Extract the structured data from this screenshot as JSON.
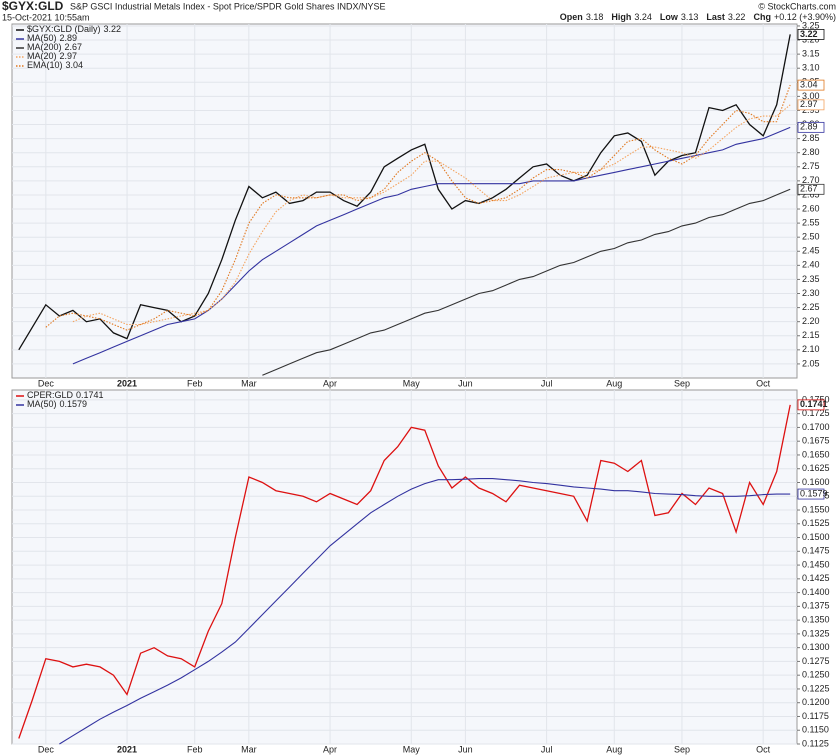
{
  "header": {
    "symbol": "$GYX:GLD",
    "description": "S&P GSCI Industrial Metals Index - Spot Price/SPDR Gold Shares INDX/NYSE",
    "date": "15-Oct-2021 10:55am",
    "credit": "© StockCharts.com",
    "quote": [
      {
        "label": "Open",
        "value": 3.18
      },
      {
        "label": "High",
        "value": 3.24
      },
      {
        "label": "Low",
        "value": 3.13
      },
      {
        "label": "Last",
        "value": 3.22
      },
      {
        "label": "Chg",
        "value": "+0.12 (+3.90%)"
      }
    ]
  },
  "chart_data": [
    {
      "type": "line",
      "grid": true,
      "legend": "top-left",
      "categories": [
        null,
        null,
        "Dec",
        null,
        null,
        null,
        null,
        null,
        "2021",
        null,
        null,
        null,
        null,
        "Feb",
        null,
        null,
        null,
        "Mar",
        null,
        null,
        null,
        null,
        null,
        "Apr",
        null,
        null,
        null,
        null,
        null,
        "May",
        null,
        null,
        null,
        "Jun",
        null,
        null,
        null,
        null,
        null,
        "Jul",
        null,
        null,
        null,
        null,
        "Aug",
        null,
        null,
        null,
        null,
        "Sep",
        null,
        null,
        null,
        null,
        null,
        "Oct",
        null,
        null
      ],
      "ylim": [
        2.0,
        3.257
      ],
      "yticks": [
        2.05,
        {
          "value": 2.1,
          "label": "2.10"
        },
        2.15,
        {
          "value": 2.2,
          "label": "2.20"
        },
        2.25,
        {
          "value": 2.3,
          "label": "2.30"
        },
        2.35,
        {
          "value": 2.4,
          "label": "2.40"
        },
        2.45,
        {
          "value": 2.5,
          "label": "2.50"
        },
        2.55,
        {
          "value": 2.6,
          "label": "2.60"
        },
        2.65,
        {
          "value": 2.7,
          "label": "2.70"
        },
        2.75,
        {
          "value": 2.8,
          "label": "2.80"
        },
        2.85,
        {
          "value": 2.9,
          "label": "2.90"
        },
        2.95,
        {
          "value": 3,
          "label": "3.00"
        },
        3.05,
        {
          "value": 3.1,
          "label": "3.10"
        },
        3.15,
        {
          "value": 3.2,
          "label": "3.20"
        },
        3.25
      ],
      "series": [
        {
          "name": "$GYX:GLD (Daily)",
          "color": "#111111",
          "style": "solid",
          "values": [
            2.1,
            2.18,
            2.26,
            2.22,
            2.24,
            2.2,
            2.21,
            2.16,
            2.14,
            2.26,
            2.25,
            2.24,
            2.2,
            2.22,
            2.3,
            2.42,
            2.56,
            2.68,
            2.64,
            2.66,
            2.62,
            2.63,
            2.66,
            2.66,
            2.63,
            2.61,
            2.66,
            2.75,
            2.78,
            2.81,
            2.83,
            2.67,
            2.6,
            2.63,
            2.62,
            2.64,
            2.67,
            2.71,
            2.75,
            2.76,
            2.72,
            2.7,
            2.72,
            2.8,
            2.86,
            2.87,
            2.84,
            2.72,
            2.77,
            2.79,
            2.8,
            2.96,
            2.95,
            2.97,
            2.9,
            2.86,
            2.97,
            3.22
          ]
        },
        {
          "name": "MA(50)",
          "color": "#3333a0",
          "style": "solid",
          "values": [
            null,
            null,
            null,
            null,
            2.05,
            2.07,
            2.09,
            2.11,
            2.13,
            2.15,
            2.17,
            2.19,
            2.2,
            2.21,
            2.24,
            2.28,
            2.33,
            2.38,
            2.42,
            2.45,
            2.48,
            2.51,
            2.54,
            2.56,
            2.58,
            2.6,
            2.62,
            2.64,
            2.65,
            2.67,
            2.68,
            2.69,
            2.69,
            2.69,
            2.69,
            2.69,
            2.69,
            2.69,
            2.7,
            2.7,
            2.7,
            2.7,
            2.71,
            2.72,
            2.73,
            2.74,
            2.75,
            2.76,
            2.77,
            2.78,
            2.79,
            2.8,
            2.81,
            2.83,
            2.84,
            2.85,
            2.87,
            2.89
          ]
        },
        {
          "name": "MA(200)",
          "color": "#333333",
          "style": "solid",
          "values": [
            null,
            null,
            null,
            null,
            null,
            null,
            null,
            null,
            null,
            null,
            null,
            null,
            null,
            null,
            null,
            null,
            null,
            null,
            2.01,
            2.03,
            2.05,
            2.07,
            2.09,
            2.1,
            2.12,
            2.14,
            2.16,
            2.17,
            2.19,
            2.21,
            2.23,
            2.24,
            2.26,
            2.28,
            2.3,
            2.31,
            2.33,
            2.35,
            2.36,
            2.38,
            2.4,
            2.41,
            2.43,
            2.45,
            2.46,
            2.48,
            2.49,
            2.51,
            2.52,
            2.54,
            2.55,
            2.57,
            2.58,
            2.6,
            2.62,
            2.63,
            2.65,
            2.67
          ]
        },
        {
          "name": "MA(20)",
          "color": "#f4a460",
          "style": "dotted",
          "values": [
            null,
            null,
            null,
            null,
            2.2,
            2.22,
            2.23,
            2.21,
            2.19,
            2.19,
            2.2,
            2.21,
            2.22,
            2.23,
            2.24,
            2.28,
            2.34,
            2.44,
            2.52,
            2.59,
            2.63,
            2.65,
            2.64,
            2.65,
            2.64,
            2.64,
            2.64,
            2.66,
            2.69,
            2.72,
            2.77,
            2.77,
            2.74,
            2.71,
            2.67,
            2.63,
            2.63,
            2.65,
            2.68,
            2.71,
            2.72,
            2.73,
            2.73,
            2.74,
            2.76,
            2.79,
            2.82,
            2.82,
            2.81,
            2.8,
            2.78,
            2.81,
            2.85,
            2.89,
            2.92,
            2.93,
            2.93,
            2.97
          ]
        },
        {
          "name": "EMA(10)",
          "color": "#e07820",
          "style": "dotted",
          "values": [
            null,
            null,
            2.18,
            2.22,
            2.23,
            2.22,
            2.21,
            2.19,
            2.17,
            2.19,
            2.21,
            2.24,
            2.23,
            2.22,
            2.24,
            2.31,
            2.42,
            2.55,
            2.62,
            2.65,
            2.64,
            2.64,
            2.64,
            2.65,
            2.65,
            2.63,
            2.64,
            2.67,
            2.73,
            2.77,
            2.8,
            2.77,
            2.7,
            2.64,
            2.62,
            2.63,
            2.64,
            2.67,
            2.71,
            2.74,
            2.74,
            2.73,
            2.71,
            2.74,
            2.79,
            2.84,
            2.85,
            2.81,
            2.78,
            2.76,
            2.79,
            2.85,
            2.9,
            2.95,
            2.94,
            2.91,
            2.91,
            3.04
          ]
        }
      ]
    },
    {
      "type": "line",
      "grid": true,
      "legend": "top-left",
      "categories": [
        null,
        null,
        "Dec",
        null,
        null,
        null,
        null,
        null,
        "2021",
        null,
        null,
        null,
        null,
        "Feb",
        null,
        null,
        null,
        "Mar",
        null,
        null,
        null,
        null,
        null,
        "Apr",
        null,
        null,
        null,
        null,
        null,
        "May",
        null,
        null,
        null,
        "Jun",
        null,
        null,
        null,
        null,
        null,
        "Jul",
        null,
        null,
        null,
        null,
        "Aug",
        null,
        null,
        null,
        null,
        "Sep",
        null,
        null,
        null,
        null,
        null,
        "Oct",
        null,
        null
      ],
      "ylim": [
        0.1125,
        0.1768
      ],
      "yticks": [
        0.1125,
        {
          "value": 0.115,
          "label": "0.1150"
        },
        0.1175,
        {
          "value": 0.12,
          "label": "0.1200"
        },
        0.1225,
        {
          "value": 0.125,
          "label": "0.1250"
        },
        0.1275,
        {
          "value": 0.13,
          "label": "0.1300"
        },
        0.1325,
        {
          "value": 0.135,
          "label": "0.1350"
        },
        0.1375,
        {
          "value": 0.14,
          "label": "0.1400"
        },
        0.1425,
        {
          "value": 0.145,
          "label": "0.1450"
        },
        0.1475,
        {
          "value": 0.15,
          "label": "0.1500"
        },
        0.1525,
        {
          "value": 0.155,
          "label": "0.1550"
        },
        0.1575,
        {
          "value": 0.16,
          "label": "0.1600"
        },
        0.1625,
        {
          "value": 0.165,
          "label": "0.1650"
        },
        0.1675,
        {
          "value": 0.17,
          "label": "0.1700"
        },
        0.1725,
        {
          "value": 0.175,
          "label": "0.1750"
        }
      ],
      "series": [
        {
          "name": "CPER:GLD",
          "color": "#dd1111",
          "style": "solid",
          "values": [
            0.1135,
            0.1205,
            0.128,
            0.1275,
            0.1265,
            0.127,
            0.1265,
            0.125,
            0.1215,
            0.129,
            0.13,
            0.1285,
            0.128,
            0.1265,
            0.133,
            0.138,
            0.15,
            0.161,
            0.16,
            0.1585,
            0.158,
            0.1575,
            0.1565,
            0.158,
            0.157,
            0.156,
            0.1585,
            0.164,
            0.1665,
            0.17,
            0.1695,
            0.163,
            0.159,
            0.161,
            0.159,
            0.158,
            0.1565,
            0.1595,
            0.159,
            0.1585,
            0.158,
            0.1575,
            0.153,
            0.164,
            0.1635,
            0.162,
            0.164,
            0.154,
            0.1545,
            0.158,
            0.156,
            0.159,
            0.158,
            0.151,
            0.16,
            0.156,
            0.162,
            0.1741
          ]
        },
        {
          "name": "MA(50)",
          "color": "#3333a0",
          "style": "solid",
          "values": [
            null,
            null,
            null,
            0.1125,
            0.114,
            0.1155,
            0.117,
            0.1183,
            0.1195,
            0.1208,
            0.122,
            0.1232,
            0.1245,
            0.126,
            0.1275,
            0.1292,
            0.131,
            0.1335,
            0.136,
            0.1385,
            0.141,
            0.1435,
            0.146,
            0.1485,
            0.1505,
            0.1525,
            0.1545,
            0.156,
            0.1575,
            0.1588,
            0.1598,
            0.1605,
            0.1605,
            0.1606,
            0.1607,
            0.1607,
            0.1605,
            0.1603,
            0.16,
            0.1598,
            0.1595,
            0.1592,
            0.159,
            0.1588,
            0.1585,
            0.1585,
            0.1583,
            0.158,
            0.1579,
            0.1578,
            0.1576,
            0.1575,
            0.1575,
            0.1575,
            0.1576,
            0.1578,
            0.1579,
            0.1579
          ]
        }
      ]
    }
  ]
}
